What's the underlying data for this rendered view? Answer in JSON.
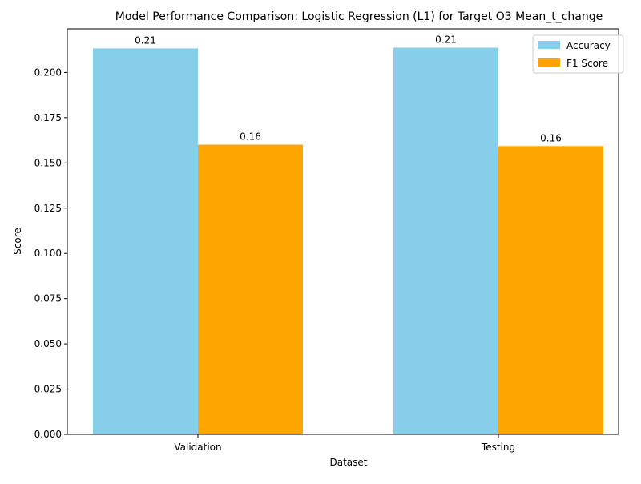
{
  "chart_data": {
    "type": "bar",
    "title": "Model Performance Comparison: Logistic Regression (L1) for Target O3 Mean_t_change",
    "xlabel": "Dataset",
    "ylabel": "Score",
    "categories": [
      "Validation",
      "Testing"
    ],
    "series": [
      {
        "name": "Accuracy",
        "color": "#87ceeb",
        "values": [
          0.2133,
          0.2137
        ],
        "value_labels": [
          "0.21",
          "0.21"
        ]
      },
      {
        "name": "F1 Score",
        "color": "#ffa500",
        "values": [
          0.1601,
          0.1593
        ],
        "value_labels": [
          "0.16",
          "0.16"
        ]
      }
    ],
    "ylim": [
      0,
      0.2241
    ],
    "yticks": [
      {
        "value": 0.0,
        "label": "0.000"
      },
      {
        "value": 0.025,
        "label": "0.025"
      },
      {
        "value": 0.05,
        "label": "0.050"
      },
      {
        "value": 0.075,
        "label": "0.075"
      },
      {
        "value": 0.1,
        "label": "0.100"
      },
      {
        "value": 0.125,
        "label": "0.125"
      },
      {
        "value": 0.15,
        "label": "0.150"
      },
      {
        "value": 0.175,
        "label": "0.175"
      },
      {
        "value": 0.2,
        "label": "0.200"
      }
    ],
    "grid": false,
    "legend": "upper right"
  }
}
